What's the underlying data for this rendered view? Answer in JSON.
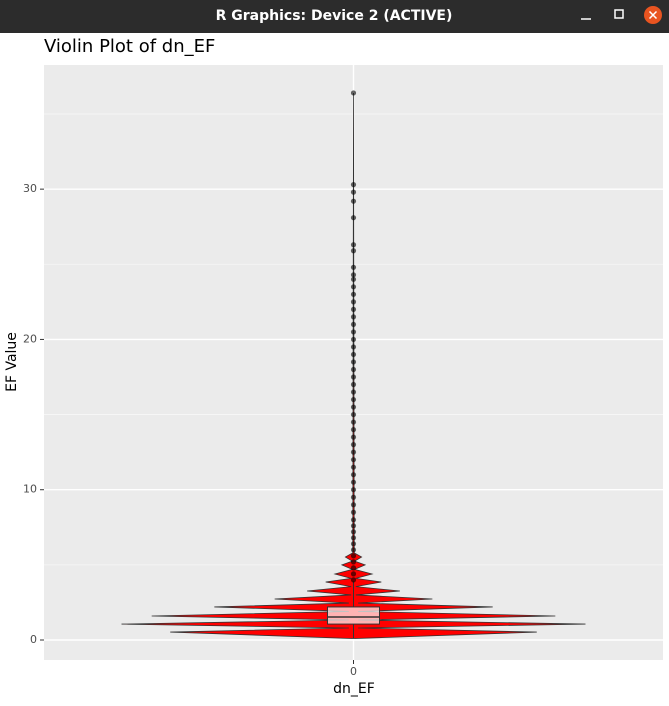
{
  "window": {
    "title": "R Graphics: Device 2 (ACTIVE)"
  },
  "chart_data": {
    "type": "violin",
    "title": "Violin Plot of dn_EF",
    "x_label": "dn_EF",
    "y_label": "EF Value",
    "categories": [
      "0"
    ],
    "ylim": [
      -1.33,
      38.26
    ],
    "yticks": [
      0,
      10,
      20,
      30
    ],
    "y_minor_ticks": [
      5,
      15,
      25,
      35
    ],
    "grid": true,
    "violin": {
      "color": "#ff0000",
      "y": [
        0.1,
        0.53,
        0.8,
        1.06,
        1.33,
        1.6,
        1.9,
        2.2,
        2.46,
        2.73,
        3.0,
        3.26,
        3.55,
        3.86,
        4.1,
        4.39,
        4.7,
        5.0,
        5.25,
        5.52,
        5.8,
        36.4
      ],
      "width": [
        0.01,
        0.79,
        0.02,
        1.0,
        0.02,
        0.87,
        0.02,
        0.6,
        0.02,
        0.34,
        0.01,
        0.2,
        0.01,
        0.12,
        0.01,
        0.08,
        0.005,
        0.05,
        0.005,
        0.035,
        0.003,
        0
      ]
    },
    "box": {
      "whisker_low": 0.1,
      "q1": 1.06,
      "median": 1.53,
      "q3": 2.2,
      "whisker_high": 3.9
    },
    "outliers": [
      4.0,
      4.4,
      4.8,
      5.2,
      5.6,
      6.0,
      6.4,
      6.8,
      7.2,
      7.6,
      8.0,
      8.5,
      9.0,
      9.5,
      10.0,
      10.5,
      11.0,
      11.5,
      12.0,
      12.5,
      13.0,
      13.5,
      14.0,
      14.5,
      15.0,
      15.5,
      16.0,
      16.5,
      17.0,
      17.5,
      18.0,
      18.5,
      19.0,
      19.5,
      20.0,
      20.5,
      21.0,
      21.5,
      22.0,
      22.5,
      23.0,
      23.5,
      24.0,
      24.3,
      24.8,
      25.9,
      26.3,
      28.1,
      29.2,
      29.8,
      30.3,
      36.4
    ]
  }
}
